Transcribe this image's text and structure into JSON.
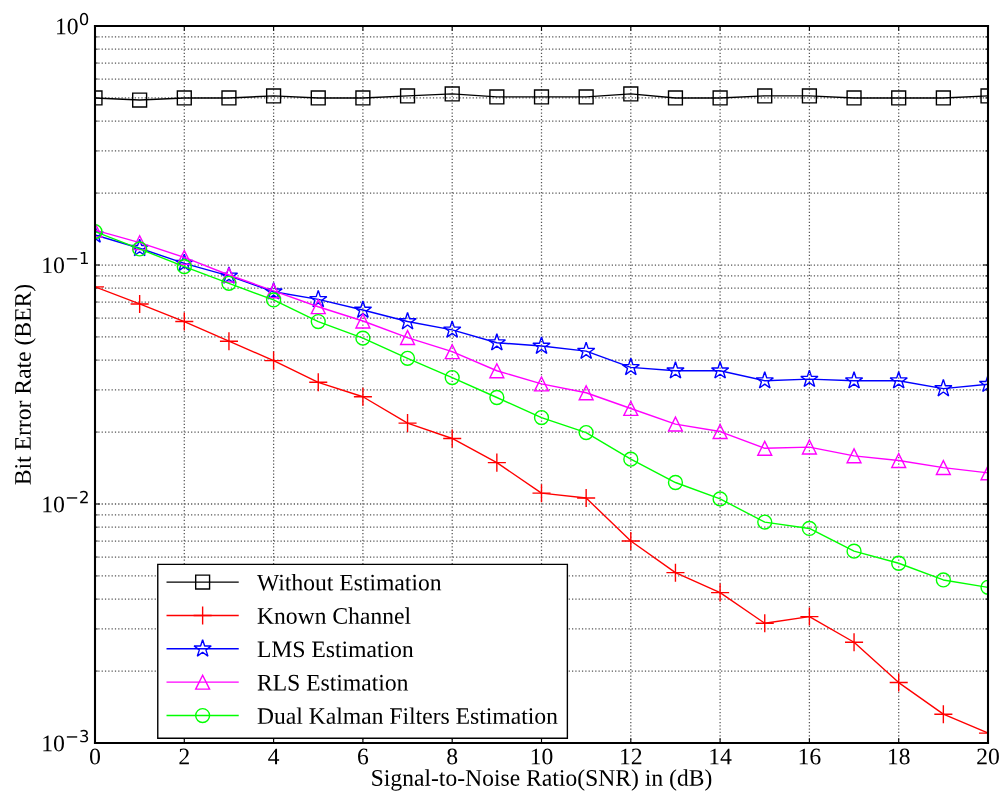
{
  "chart_data": {
    "type": "line",
    "xlabel": "Signal-to-Noise Ratio(SNR) in (dB)",
    "ylabel": "Bit Error Rate (BER)",
    "x": [
      0,
      1,
      2,
      3,
      4,
      5,
      6,
      7,
      8,
      9,
      10,
      11,
      12,
      13,
      14,
      15,
      16,
      17,
      18,
      19,
      20
    ],
    "log": "y",
    "xlim": [
      0,
      20
    ],
    "xticks": [
      0,
      2,
      4,
      6,
      8,
      10,
      12,
      14,
      16,
      18,
      20
    ],
    "ylim": [
      0.001,
      1
    ],
    "yticks": [
      {
        "value": 0.001,
        "label": "10$^{−3}$"
      },
      {
        "value": 0.01,
        "label": "10$^{−2}$"
      },
      {
        "value": 0.1,
        "label": "10$^{−1}$"
      },
      {
        "value": 1,
        "label": "10$^{0}$"
      }
    ],
    "grid": true,
    "legend": "bottom left",
    "line_style": "solid",
    "series": [
      {
        "name": "Without Estimation",
        "color": "#000000",
        "marker": "square",
        "values": [
          0.5,
          0.49,
          0.5,
          0.5,
          0.51,
          0.5,
          0.5,
          0.51,
          0.52,
          0.505,
          0.505,
          0.505,
          0.52,
          0.5,
          0.5,
          0.51,
          0.51,
          0.5,
          0.5,
          0.5,
          0.51
        ]
      },
      {
        "name": "Known Channel",
        "color": "#ff0000",
        "marker": "cross",
        "values": [
          0.081,
          0.0687,
          0.058,
          0.048,
          0.0398,
          0.0323,
          0.0281,
          0.0218,
          0.0188,
          0.0149,
          0.0111,
          0.0106,
          0.007,
          0.00516,
          0.00426,
          0.00317,
          0.00338,
          0.00264,
          0.00179,
          0.00132,
          0.0011
        ]
      },
      {
        "name": "LMS Estimation",
        "color": "#0000ff",
        "marker": "star",
        "values": [
          0.1336,
          0.1175,
          0.1016,
          0.09,
          0.0773,
          0.0718,
          0.0648,
          0.058,
          0.0535,
          0.0473,
          0.0458,
          0.0436,
          0.0373,
          0.0361,
          0.0361,
          0.0328,
          0.0333,
          0.0328,
          0.0328,
          0.0304,
          0.0317
        ]
      },
      {
        "name": "RLS Estimation",
        "color": "#ff00ff",
        "marker": "triangle",
        "values": [
          0.14,
          0.124,
          0.1076,
          0.0908,
          0.078,
          0.0669,
          0.0583,
          0.0497,
          0.0434,
          0.0361,
          0.0318,
          0.0292,
          0.0251,
          0.0216,
          0.0201,
          0.0171,
          0.0173,
          0.0159,
          0.0152,
          0.0142,
          0.0135
        ]
      },
      {
        "name": "Dual Kalman Filters Estimation",
        "color": "#00ff00",
        "marker": "circle",
        "values": [
          0.138,
          0.1167,
          0.0984,
          0.0838,
          0.0714,
          0.058,
          0.0494,
          0.0407,
          0.0338,
          0.0279,
          0.023,
          0.0199,
          0.0154,
          0.0123,
          0.0105,
          0.0084,
          0.0079,
          0.00635,
          0.00565,
          0.00481,
          0.00448
        ]
      }
    ]
  }
}
